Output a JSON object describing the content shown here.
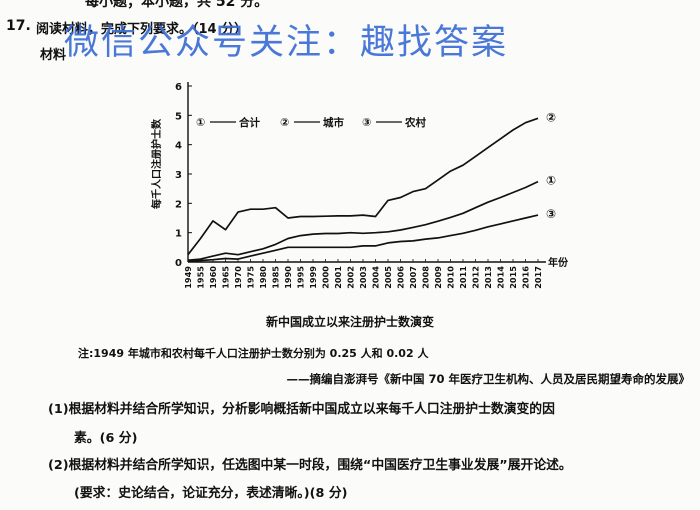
{
  "header": {
    "top_cutoff": "每小题；本小题，共 52 分。",
    "question_number": "17.",
    "stem": "阅读材料，完成下列要求。（14 分）",
    "material_label": "材料"
  },
  "watermark": "微信公众号关注：趣找答案",
  "chart_data": {
    "type": "line",
    "ylabel": "每千人口注册护士数",
    "xlabel": "年份",
    "ylim": [
      0,
      6
    ],
    "yticks": [
      "0",
      "1",
      "2",
      "3",
      "4",
      "5",
      "6"
    ],
    "categories": [
      "1949",
      "1955",
      "1960",
      "1965",
      "1970",
      "1975",
      "1980",
      "1985",
      "1990",
      "1995",
      "1999",
      "2000",
      "2001",
      "2002",
      "2003",
      "2004",
      "2005",
      "2006",
      "2007",
      "2008",
      "2009",
      "2010",
      "2011",
      "2012",
      "2013",
      "2014",
      "2015",
      "2016",
      "2017"
    ],
    "legend": [
      {
        "marker": "①",
        "label": "合计"
      },
      {
        "marker": "②",
        "label": "城市"
      },
      {
        "marker": "③",
        "label": "农村"
      }
    ],
    "series": [
      {
        "name": "合计",
        "marker": "①",
        "values": [
          0.06,
          0.1,
          0.2,
          0.3,
          0.25,
          0.35,
          0.45,
          0.6,
          0.8,
          0.9,
          0.95,
          0.97,
          0.97,
          1.0,
          0.98,
          1.0,
          1.03,
          1.09,
          1.18,
          1.27,
          1.39,
          1.52,
          1.66,
          1.85,
          2.04,
          2.2,
          2.37,
          2.54,
          2.74
        ]
      },
      {
        "name": "城市",
        "marker": "②",
        "values": [
          0.25,
          0.8,
          1.4,
          1.1,
          1.7,
          1.8,
          1.8,
          1.85,
          1.5,
          1.55,
          1.55,
          1.56,
          1.57,
          1.57,
          1.6,
          1.55,
          2.1,
          2.2,
          2.4,
          2.5,
          2.8,
          3.1,
          3.3,
          3.6,
          3.9,
          4.2,
          4.5,
          4.75,
          4.9
        ]
      },
      {
        "name": "农村",
        "marker": "③",
        "values": [
          0.02,
          0.05,
          0.08,
          0.12,
          0.1,
          0.2,
          0.3,
          0.4,
          0.5,
          0.5,
          0.5,
          0.5,
          0.5,
          0.5,
          0.55,
          0.55,
          0.65,
          0.7,
          0.72,
          0.78,
          0.82,
          0.9,
          0.98,
          1.08,
          1.2,
          1.3,
          1.4,
          1.5,
          1.6
        ]
      }
    ],
    "title": "新中国成立以来注册护士数演变"
  },
  "note": "注:1949 年城市和农村每千人口注册护士数分别为 0.25 人和 0.02 人",
  "source": "——摘编自澎湃号《新中国 70 年医疗卫生机构、人员及居民期望寿命的发展》",
  "questions": [
    {
      "line1": "(1)根据材料并结合所学知识，分析影响概括新中国成立以来每千人口注册护士数演变的因",
      "line2": "素。(6 分)"
    },
    {
      "line1": "(2)根据材料并结合所学知识，任选图中某一时段，围绕“中国医疗卫生事业发展”展开论述。",
      "line2": "(要求：史论结合，论证充分，表述清晰。)(8 分)"
    }
  ]
}
